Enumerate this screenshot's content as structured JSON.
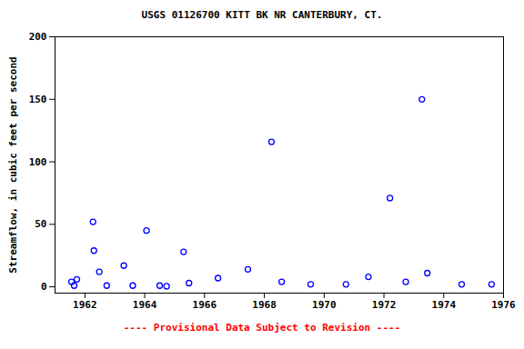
{
  "chart_data": {
    "type": "scatter",
    "title": "USGS 01126700 KITT BK NR CANTERBURY, CT.",
    "y_label": "Streamflow, in cubic feet per second",
    "caption": "---- Provisional Data Subject to Revision ----",
    "x": [
      1961.55,
      1961.64,
      1961.73,
      1962.27,
      1962.3,
      1962.48,
      1962.73,
      1963.3,
      1963.6,
      1964.06,
      1964.5,
      1964.73,
      1965.3,
      1965.48,
      1966.45,
      1967.45,
      1968.24,
      1968.58,
      1969.55,
      1970.73,
      1971.48,
      1972.2,
      1972.73,
      1973.27,
      1973.45,
      1974.6,
      1975.6
    ],
    "values": [
      4,
      1,
      6,
      52,
      29,
      12,
      1,
      17,
      1,
      45,
      1,
      0.5,
      28,
      3,
      7,
      14,
      116,
      4,
      2,
      2,
      8,
      71,
      4,
      150,
      11,
      2,
      2
    ],
    "color": "#0000ff",
    "marker": "open_circle",
    "xlim": [
      1961,
      1976
    ],
    "xticks": [
      1962,
      1964,
      1966,
      1968,
      1970,
      1972,
      1974,
      1976
    ],
    "ylim": [
      -5,
      200
    ],
    "yticks": [
      0,
      50,
      100,
      150,
      200
    ],
    "grid": false
  }
}
